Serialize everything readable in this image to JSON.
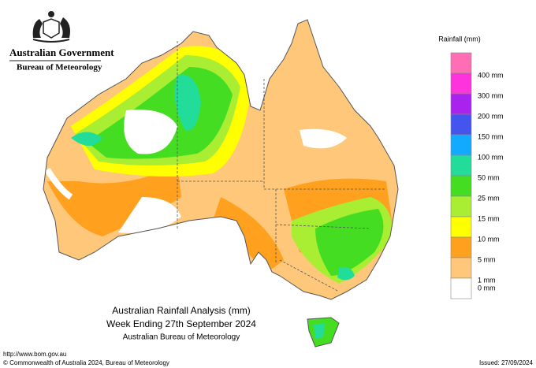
{
  "header": {
    "government": "Australian Government",
    "bureau": "Bureau of Meteorology"
  },
  "legend": {
    "title": "Rainfall (mm)",
    "items": [
      {
        "label": "400 mm",
        "color": "#ff6eb4"
      },
      {
        "label": "300 mm",
        "color": "#ff33dd"
      },
      {
        "label": "200 mm",
        "color": "#aa22ee"
      },
      {
        "label": "150 mm",
        "color": "#4455ee"
      },
      {
        "label": "100 mm",
        "color": "#11aaff"
      },
      {
        "label": "50 mm",
        "color": "#22dd99"
      },
      {
        "label": "25 mm",
        "color": "#44dd22"
      },
      {
        "label": "15 mm",
        "color": "#aaee33"
      },
      {
        "label": "10 mm",
        "color": "#ffff00"
      },
      {
        "label": "5 mm",
        "color": "#ffa01e"
      },
      {
        "label": "1 mm",
        "color": "#ffc779"
      },
      {
        "label": "0 mm",
        "color": "#ffffff"
      }
    ]
  },
  "caption": {
    "title": "Australian Rainfall Analysis (mm)",
    "subtitle": "Week Ending 27th September 2024",
    "source": "Australian Bureau of Meteorology"
  },
  "footer": {
    "url": "http://www.bom.gov.au",
    "copyright": "© Commonwealth of Australia 2024, Bureau of Meteorology",
    "issued": "Issued: 27/09/2024"
  }
}
